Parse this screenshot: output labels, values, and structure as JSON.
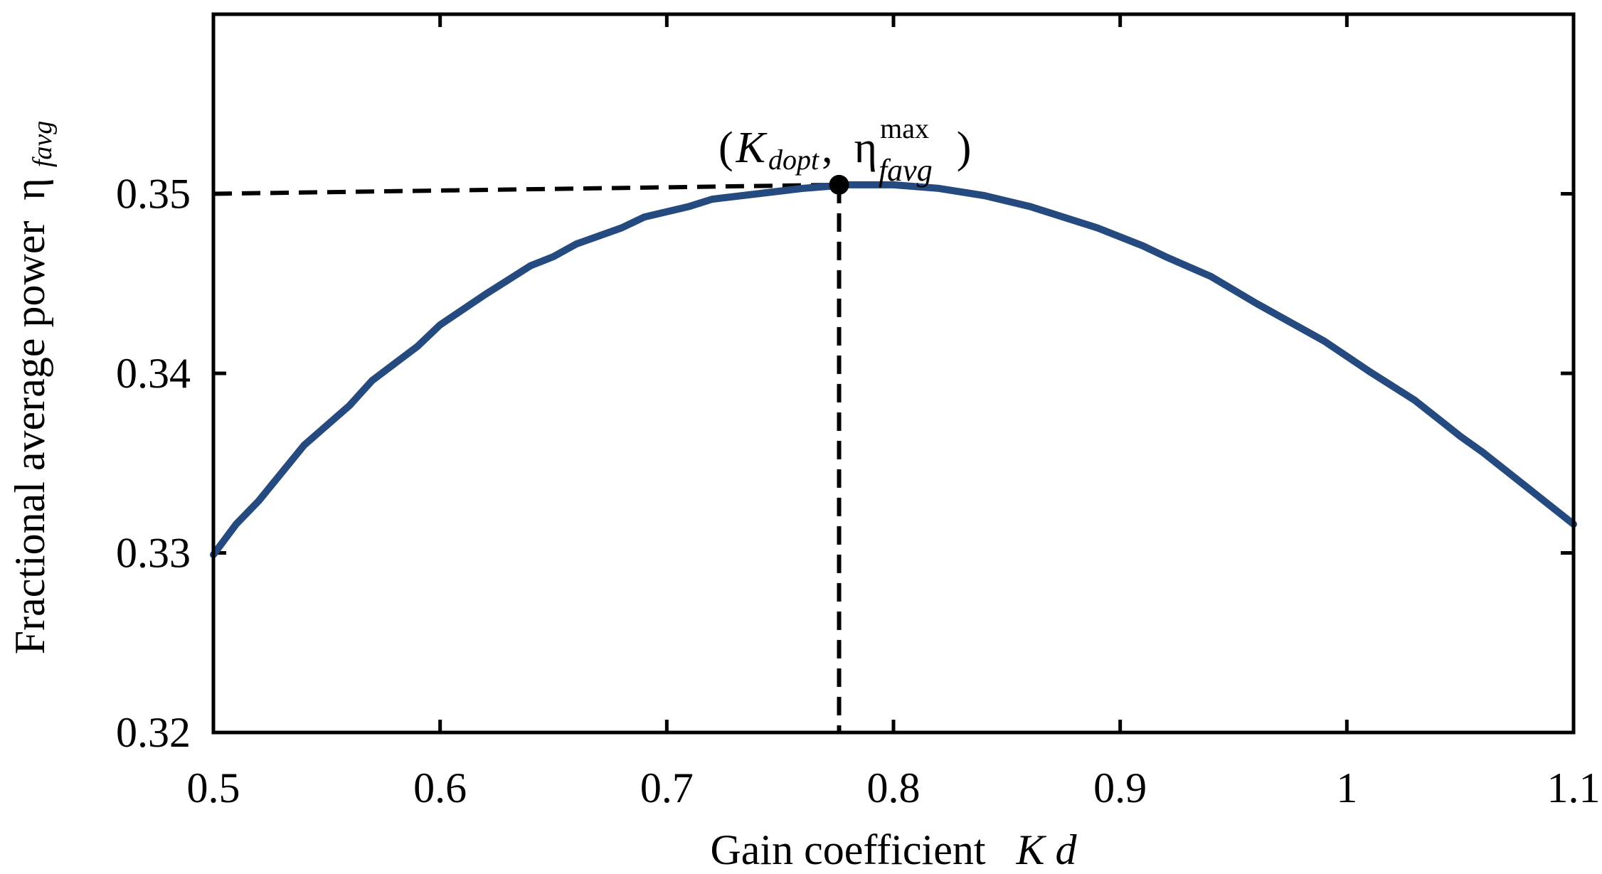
{
  "chart_data": {
    "type": "line",
    "title": "",
    "xlabel": "Gain coefficient",
    "xlabel_symbol": "K",
    "xlabel_symbol_sub": "d",
    "ylabel": "Fractional average power",
    "ylabel_symbol": "η",
    "ylabel_symbol_sub": "favg",
    "xlim": [
      0.5,
      1.1
    ],
    "ylim": [
      0.32,
      0.36
    ],
    "xticks": [
      0.5,
      0.6,
      0.7,
      0.8,
      0.9,
      1.0,
      1.1
    ],
    "xtick_labels": [
      "0.5",
      "0.6",
      "0.7",
      "0.8",
      "0.9",
      "1",
      "1.1"
    ],
    "yticks": [
      0.32,
      0.33,
      0.34,
      0.35
    ],
    "ytick_labels": [
      "0.32",
      "0.33",
      "0.34",
      "0.35"
    ],
    "series": [
      {
        "name": "eta_favg",
        "color": "#254a80",
        "x": [
          0.5,
          0.51,
          0.52,
          0.54,
          0.56,
          0.57,
          0.59,
          0.6,
          0.62,
          0.64,
          0.65,
          0.66,
          0.68,
          0.69,
          0.71,
          0.72,
          0.74,
          0.76,
          0.77,
          0.78,
          0.8,
          0.82,
          0.84,
          0.86,
          0.89,
          0.91,
          0.92,
          0.94,
          0.96,
          0.98,
          0.99,
          1.01,
          1.03,
          1.05,
          1.06,
          1.08,
          1.1
        ],
        "y": [
          0.3299,
          0.3316,
          0.3329,
          0.336,
          0.3382,
          0.3396,
          0.3415,
          0.3427,
          0.3444,
          0.346,
          0.3465,
          0.3472,
          0.3481,
          0.3487,
          0.3493,
          0.3497,
          0.35,
          0.3503,
          0.3504,
          0.3505,
          0.3505,
          0.3503,
          0.3499,
          0.3493,
          0.3481,
          0.3471,
          0.3465,
          0.3454,
          0.3439,
          0.3425,
          0.3418,
          0.3401,
          0.3385,
          0.3365,
          0.3356,
          0.3336,
          0.3316
        ]
      }
    ],
    "optimum": {
      "x": 0.776,
      "y": 0.3505,
      "label_open": "(",
      "label_K": "K",
      "label_K_sub": "dopt",
      "label_comma": ",",
      "label_eta": "η",
      "label_eta_sup": "max",
      "label_eta_sub": "favg",
      "label_close": ")"
    },
    "grid": false,
    "legend": "none"
  }
}
